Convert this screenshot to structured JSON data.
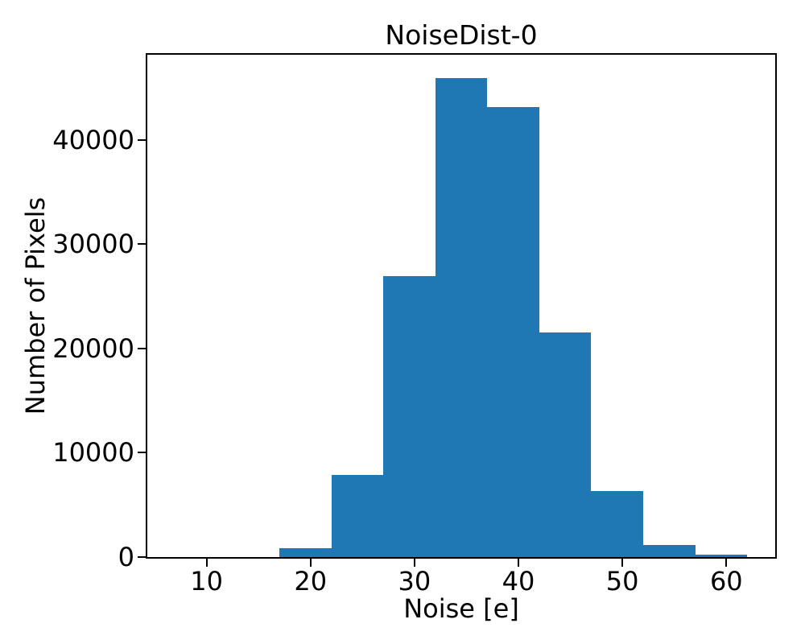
{
  "chart_data": {
    "type": "bar",
    "subtype": "histogram",
    "title": "NoiseDist-0",
    "xlabel": "Noise [e]",
    "ylabel": "Number of Pixels",
    "bin_edges": [
      17,
      22,
      27,
      32,
      37,
      42,
      47,
      52,
      57,
      62
    ],
    "counts": [
      850,
      7850,
      26900,
      45900,
      43100,
      21500,
      6300,
      1150,
      230
    ],
    "x_ticks": [
      10,
      20,
      30,
      40,
      50,
      60
    ],
    "y_ticks": [
      0,
      10000,
      20000,
      30000,
      40000
    ],
    "xlim": [
      4.3,
      64.7
    ],
    "ylim": [
      0,
      48150
    ],
    "bar_color": "#1f77b4",
    "axis_color": "#000000",
    "background_color": "#ffffff",
    "grid": false,
    "legend": false
  }
}
